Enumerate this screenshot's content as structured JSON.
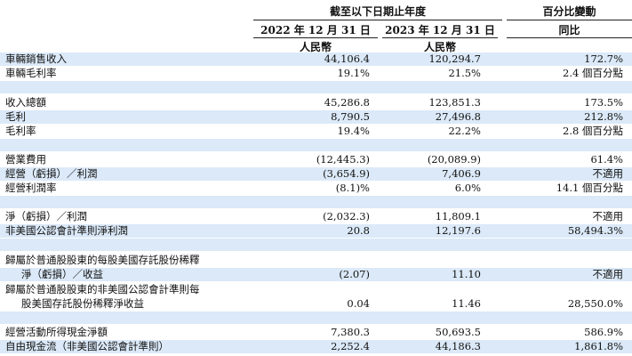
{
  "header": {
    "period_title": "截至以下日期止年度",
    "change_title": "百分比變動",
    "col1_date": "2022 年 12 月 31 日",
    "col2_date": "2023 年 12 月 31 日",
    "change_sub": "同比",
    "col1_unit": "人民幣",
    "col2_unit": "人民幣"
  },
  "rows": [
    {
      "label": "車輛銷售收入",
      "v2022": "44,106.4",
      "v2023": "120,294.7",
      "change": "172.7%"
    },
    {
      "label": "車輛毛利率",
      "v2022": "19.1%",
      "v2023": "21.5%",
      "change": "2.4 個百分點"
    },
    {
      "label": "收入總額",
      "v2022": "45,286.8",
      "v2023": "123,851.3",
      "change": "173.5%"
    },
    {
      "label": "毛利",
      "v2022": "8,790.5",
      "v2023": "27,496.8",
      "change": "212.8%"
    },
    {
      "label": "毛利率",
      "v2022": "19.4%",
      "v2023": "22.2%",
      "change": "2.8 個百分點"
    },
    {
      "label": "營業費用",
      "v2022": "(12,445.3)",
      "v2023": "(20,089.9)",
      "change": "61.4%"
    },
    {
      "label": "經營（虧損）／利潤",
      "v2022": "(3,654.9)",
      "v2023": "7,406.9",
      "change": "不適用"
    },
    {
      "label": "經營利潤率",
      "v2022": "(8.1)%",
      "v2023": "6.0%",
      "change": "14.1 個百分點"
    },
    {
      "label": "淨（虧損）／利潤",
      "v2022": "(2,032.3)",
      "v2023": "11,809.1",
      "change": "不適用"
    },
    {
      "label": "非美國公認會計準則淨利潤",
      "v2022": "20.8",
      "v2023": "12,197.6",
      "change": "58,494.3%"
    },
    {
      "label": "歸屬於普通股股東的每股美國存託股份稀釋",
      "label2": "淨（虧損）／收益",
      "v2022": "(2.07)",
      "v2023": "11.10",
      "change": "不適用"
    },
    {
      "label": "歸屬於普通股股東的非美國公認會計準則每",
      "label2": "股美國存託股份稀釋淨收益",
      "v2022": "0.04",
      "v2023": "11.46",
      "change": "28,550.0%"
    },
    {
      "label": "經營活動所得現金淨額",
      "v2022": "7,380.3",
      "v2023": "50,693.5",
      "change": "586.9%"
    },
    {
      "label": "自由現金流（非美國公認會計準則）",
      "v2022": "2,252.4",
      "v2023": "44,186.3",
      "change": "1,861.8%"
    }
  ]
}
